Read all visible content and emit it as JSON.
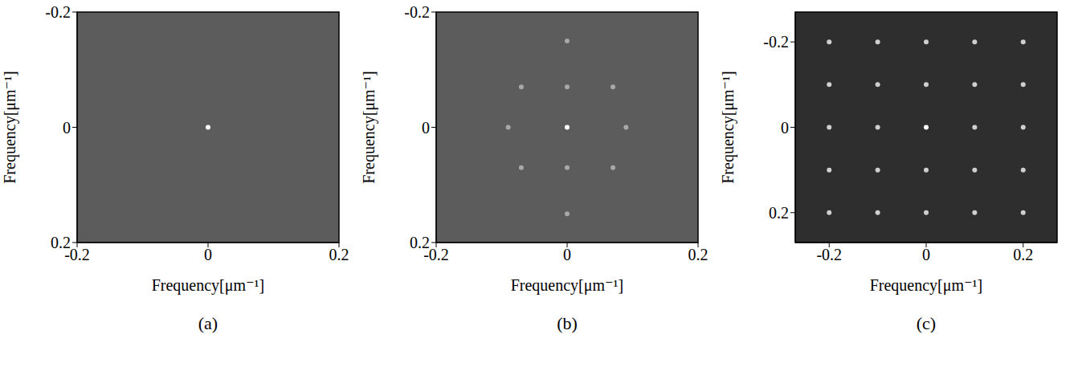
{
  "chart_data": [
    {
      "type": "scatter",
      "title": "(a)",
      "x_label": "Frequency[μm⁻¹]",
      "y_label": "Frequency[μm⁻¹]",
      "xlim": [
        -0.2,
        0.2
      ],
      "ylim": [
        0.2,
        -0.2
      ],
      "xticks": [
        -0.2,
        0,
        0.2
      ],
      "yticks": [
        -0.2,
        0,
        0.2
      ],
      "grid": false,
      "series": [
        {
          "color": "#ffffff",
          "x": [
            0
          ],
          "y": [
            0
          ]
        }
      ]
    },
    {
      "type": "scatter",
      "title": "(b)",
      "x_label": "Frequency[μm⁻¹]",
      "y_label": "Frequency[μm⁻¹]",
      "xlim": [
        -0.2,
        0.2
      ],
      "ylim": [
        0.2,
        -0.2
      ],
      "xticks": [
        -0.2,
        0,
        0.2
      ],
      "yticks": [
        -0.2,
        0,
        0.2
      ],
      "grid": false,
      "series": [
        {
          "color": "#ffffff",
          "x": [
            0
          ],
          "y": [
            0
          ]
        },
        {
          "color": "#a8a8a8",
          "x": [
            0,
            0,
            -0.09,
            0.09,
            -0.07,
            0.07,
            -0.07,
            0.07,
            0,
            0
          ],
          "y": [
            -0.07,
            0.07,
            0,
            0,
            -0.07,
            -0.07,
            0.07,
            0.07,
            -0.15,
            0.15
          ]
        }
      ]
    },
    {
      "type": "scatter",
      "title": "(c)",
      "x_label": "Frequency[μm⁻¹]",
      "y_label": "Frequency[μm⁻¹]",
      "xlim": [
        -0.27,
        0.27
      ],
      "ylim": [
        0.27,
        -0.27
      ],
      "xticks": [
        -0.2,
        0,
        0.2
      ],
      "yticks": [
        -0.2,
        0,
        0.2
      ],
      "grid": false,
      "series": [
        {
          "color": "#ffffff",
          "x": [
            0
          ],
          "y": [
            0
          ]
        },
        {
          "color": "#cfcfcf",
          "x": [
            -0.2,
            -0.1,
            0.1,
            0.2,
            -0.2,
            -0.1,
            0,
            0.1,
            0.2,
            -0.2,
            -0.1,
            0,
            0.1,
            0.2,
            -0.2,
            -0.1,
            0,
            0.1,
            0.2,
            -0.2,
            -0.1,
            0,
            0.1,
            0.2
          ],
          "y": [
            0,
            0,
            0,
            0,
            -0.2,
            -0.2,
            -0.2,
            -0.2,
            -0.2,
            -0.1,
            -0.1,
            -0.1,
            -0.1,
            -0.1,
            0.1,
            0.1,
            0.1,
            0.1,
            0.1,
            0.2,
            0.2,
            0.2,
            0.2,
            0.2
          ]
        }
      ]
    }
  ]
}
